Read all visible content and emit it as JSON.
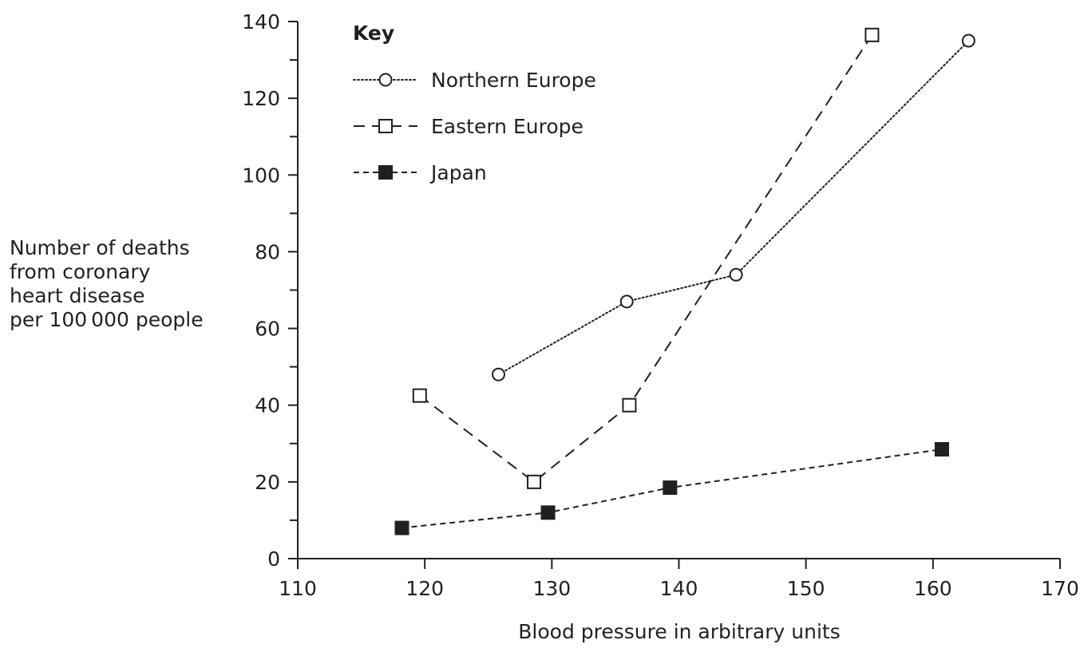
{
  "chart_data": {
    "type": "line",
    "title": "",
    "xlabel": "Blood pressure in arbitrary units",
    "ylabel_lines": [
      "Number of deaths",
      "from coronary",
      "heart disease",
      "per 100 000 people"
    ],
    "xlim": [
      110,
      170
    ],
    "ylim": [
      0,
      140
    ],
    "x_ticks": [
      110,
      120,
      130,
      140,
      150,
      160,
      170
    ],
    "y_ticks": [
      0,
      20,
      40,
      60,
      80,
      100,
      120,
      140
    ],
    "y_minor_step": 10,
    "legend": {
      "title": "Key",
      "placement": "top-left"
    },
    "series": [
      {
        "name": "Northern Europe",
        "marker": "circle-open",
        "line": "dotted",
        "points": [
          [
            125.8,
            48
          ],
          [
            135.9,
            67
          ],
          [
            144.5,
            74
          ],
          [
            162.8,
            135
          ]
        ]
      },
      {
        "name": "Eastern Europe",
        "marker": "square-open",
        "line": "long-dash",
        "points": [
          [
            119.6,
            42.5
          ],
          [
            128.6,
            20
          ],
          [
            136.1,
            40
          ],
          [
            155.2,
            136.5
          ]
        ]
      },
      {
        "name": "Japan",
        "marker": "square-filled",
        "line": "short-dash",
        "points": [
          [
            118.2,
            8
          ],
          [
            129.7,
            12
          ],
          [
            139.3,
            18.5
          ],
          [
            160.7,
            28.5
          ]
        ]
      }
    ],
    "colors": {
      "ink": "#231f20",
      "background": "#ffffff"
    }
  }
}
